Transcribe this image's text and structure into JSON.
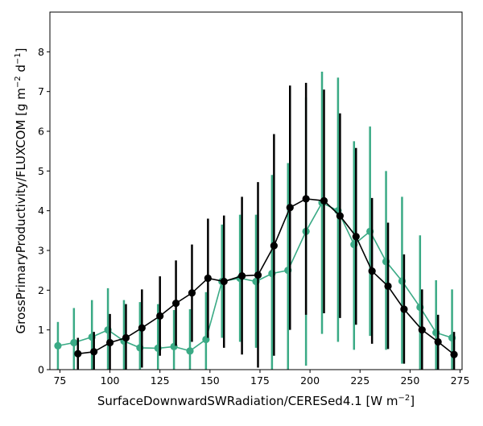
{
  "chart_data": {
    "type": "line",
    "xlabel": "SurfaceDownwardSWRadiation/CERESed4.1 [W m$^{-2}$]",
    "xlabel_parts": {
      "main": "SurfaceDownwardSWRadiation/CERESed4.1 [W m",
      "sup": "−2",
      "close": "]"
    },
    "ylabel": "GrossPrimaryProductivity/FLUXCOM [g m$^{-2}$ d$^{-1}$]",
    "ylabel_parts": {
      "main": "GrossPrimaryProductivity/FLUXCOM [g m",
      "sup1": "−2",
      "mid": " d",
      "sup2": "−1",
      "close": "]"
    },
    "xlim": [
      70,
      276
    ],
    "ylim": [
      0,
      9
    ],
    "xticks": [
      75,
      100,
      125,
      150,
      175,
      200,
      225,
      250,
      275
    ],
    "yticks": [
      0,
      1,
      2,
      3,
      4,
      5,
      6,
      7,
      8
    ],
    "grid": false,
    "series": [
      {
        "color": "#3aaa85",
        "error_bars": true,
        "points": [
          {
            "x": 74,
            "y": 0.6,
            "lo": 0.0,
            "hi": 1.2
          },
          {
            "x": 82,
            "y": 0.68,
            "lo": 0.0,
            "hi": 1.55
          },
          {
            "x": 91,
            "y": 0.82,
            "lo": 0.0,
            "hi": 1.75
          },
          {
            "x": 99,
            "y": 1.0,
            "lo": 0.0,
            "hi": 2.05
          },
          {
            "x": 107,
            "y": 0.72,
            "lo": 0.0,
            "hi": 1.75
          },
          {
            "x": 115,
            "y": 0.55,
            "lo": 0.0,
            "hi": 1.7
          },
          {
            "x": 124,
            "y": 0.54,
            "lo": 0.0,
            "hi": 1.65
          },
          {
            "x": 132,
            "y": 0.58,
            "lo": 0.0,
            "hi": 1.5
          },
          {
            "x": 140,
            "y": 0.47,
            "lo": 0.0,
            "hi": 1.52
          },
          {
            "x": 148,
            "y": 0.76,
            "lo": 0.0,
            "hi": 1.95
          },
          {
            "x": 156,
            "y": 2.22,
            "lo": 0.8,
            "hi": 3.65
          },
          {
            "x": 165,
            "y": 2.3,
            "lo": 0.7,
            "hi": 3.9
          },
          {
            "x": 173,
            "y": 2.22,
            "lo": 0.55,
            "hi": 3.9
          },
          {
            "x": 181,
            "y": 2.42,
            "lo": 0.0,
            "hi": 4.9
          },
          {
            "x": 189,
            "y": 2.5,
            "lo": 0.0,
            "hi": 5.2
          },
          {
            "x": 198,
            "y": 3.48,
            "lo": 0.1,
            "hi": 6.85
          },
          {
            "x": 206,
            "y": 4.2,
            "lo": 0.9,
            "hi": 7.5
          },
          {
            "x": 214,
            "y": 4.0,
            "lo": 0.7,
            "hi": 7.35
          },
          {
            "x": 222,
            "y": 3.15,
            "lo": 0.5,
            "hi": 5.75
          },
          {
            "x": 230,
            "y": 3.48,
            "lo": 0.85,
            "hi": 6.12
          },
          {
            "x": 238,
            "y": 2.72,
            "lo": 0.5,
            "hi": 5.0
          },
          {
            "x": 246,
            "y": 2.23,
            "lo": 0.15,
            "hi": 4.35
          },
          {
            "x": 255,
            "y": 1.57,
            "lo": 0.0,
            "hi": 3.38
          },
          {
            "x": 263,
            "y": 0.93,
            "lo": 0.0,
            "hi": 2.25
          },
          {
            "x": 271,
            "y": 0.8,
            "lo": 0.0,
            "hi": 2.02
          }
        ]
      },
      {
        "color": "#000000",
        "error_bars": true,
        "points": [
          {
            "x": 84,
            "y": 0.4,
            "lo": 0.0,
            "hi": 0.8
          },
          {
            "x": 92,
            "y": 0.45,
            "lo": 0.0,
            "hi": 0.95
          },
          {
            "x": 100,
            "y": 0.68,
            "lo": 0.0,
            "hi": 1.4
          },
          {
            "x": 108,
            "y": 0.8,
            "lo": 0.0,
            "hi": 1.65
          },
          {
            "x": 116,
            "y": 1.05,
            "lo": 0.05,
            "hi": 2.02
          },
          {
            "x": 125,
            "y": 1.35,
            "lo": 0.35,
            "hi": 2.35
          },
          {
            "x": 133,
            "y": 1.67,
            "lo": 0.6,
            "hi": 2.75
          },
          {
            "x": 141,
            "y": 1.93,
            "lo": 0.7,
            "hi": 3.15
          },
          {
            "x": 149,
            "y": 2.3,
            "lo": 0.8,
            "hi": 3.8
          },
          {
            "x": 157,
            "y": 2.22,
            "lo": 0.55,
            "hi": 3.88
          },
          {
            "x": 166,
            "y": 2.36,
            "lo": 0.38,
            "hi": 4.35
          },
          {
            "x": 174,
            "y": 2.38,
            "lo": 0.05,
            "hi": 4.72
          },
          {
            "x": 182,
            "y": 3.12,
            "lo": 0.35,
            "hi": 5.93
          },
          {
            "x": 190,
            "y": 4.08,
            "lo": 1.0,
            "hi": 7.15
          },
          {
            "x": 198,
            "y": 4.3,
            "lo": 1.38,
            "hi": 7.22
          },
          {
            "x": 207,
            "y": 4.25,
            "lo": 1.42,
            "hi": 7.05
          },
          {
            "x": 215,
            "y": 3.87,
            "lo": 1.3,
            "hi": 6.45
          },
          {
            "x": 223,
            "y": 3.35,
            "lo": 1.13,
            "hi": 5.58
          },
          {
            "x": 231,
            "y": 2.48,
            "lo": 0.65,
            "hi": 4.32
          },
          {
            "x": 239,
            "y": 2.1,
            "lo": 0.52,
            "hi": 3.7
          },
          {
            "x": 247,
            "y": 1.52,
            "lo": 0.15,
            "hi": 2.9
          },
          {
            "x": 256,
            "y": 1.0,
            "lo": 0.0,
            "hi": 2.02
          },
          {
            "x": 264,
            "y": 0.7,
            "lo": 0.0,
            "hi": 1.38
          },
          {
            "x": 272,
            "y": 0.38,
            "lo": 0.0,
            "hi": 0.95
          }
        ]
      }
    ]
  }
}
